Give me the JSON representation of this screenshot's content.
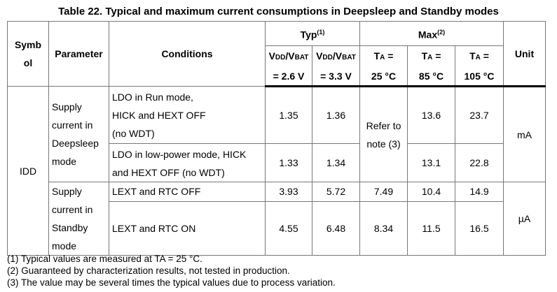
{
  "title": "Table 22. Typical and maximum current consumptions in Deepsleep and Standby modes",
  "header": {
    "symbol": "Symbol",
    "symbol_l1": "Symb",
    "symbol_l2": "ol",
    "parameter": "Parameter",
    "conditions": "Conditions",
    "typ": "Typ",
    "typ_note": "(1)",
    "max": "Max",
    "max_note": "(2)",
    "unit": "Unit",
    "typ_cols": [
      {
        "l1": "VDD/VBAT",
        "l2": "= 2.6 V"
      },
      {
        "l1": "VDD/VBAT",
        "l2": "= 3.3 V"
      }
    ],
    "max_cols": [
      {
        "l1": "TA =",
        "l2": "25 °C"
      },
      {
        "l1": "TA =",
        "l2": "85 °C"
      },
      {
        "l1": "TA =",
        "l2": "105 °C"
      }
    ]
  },
  "symbol": "IDD",
  "groups": [
    {
      "parameter": [
        "Supply",
        "current in",
        "Deepsleep",
        "mode"
      ],
      "unit": "mA",
      "refer": [
        "Refer to",
        "note (3)"
      ],
      "rows": [
        {
          "conditions": [
            "LDO in Run mode,",
            "HICK and HEXT OFF",
            "(no WDT)"
          ],
          "typ26": "1.35",
          "typ33": "1.36",
          "max85": "13.6",
          "max105": "23.7"
        },
        {
          "conditions": [
            "LDO in low-power mode, HICK",
            "and HEXT OFF (no WDT)"
          ],
          "typ26": "1.33",
          "typ33": "1.34",
          "max85": "13.1",
          "max105": "22.8"
        }
      ]
    },
    {
      "parameter": [
        "Supply",
        "current in",
        "Standby",
        "mode"
      ],
      "unit": "µA",
      "rows": [
        {
          "conditions": [
            "LEXT and RTC OFF"
          ],
          "typ26": "3.93",
          "typ33": "5.72",
          "max25": "7.49",
          "max85": "10.4",
          "max105": "14.9"
        },
        {
          "conditions": [
            "LEXT and RTC ON"
          ],
          "typ26": "4.55",
          "typ33": "6.48",
          "max25": "8.34",
          "max85": "11.5",
          "max105": "16.5"
        }
      ]
    }
  ],
  "notes": [
    "(1)  Typical values are measured at TA = 25 °C.",
    "(2)  Guaranteed by characterization results, not tested in production.",
    "(3)  The value may be several times the typical values due to process variation."
  ]
}
